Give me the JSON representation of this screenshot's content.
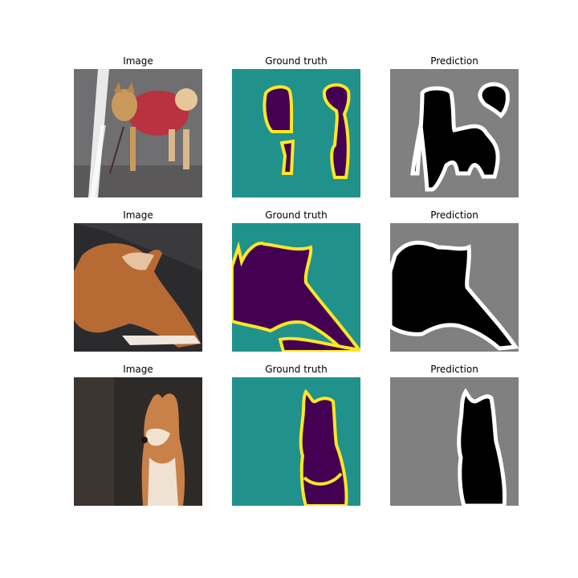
{
  "rows": [
    {
      "image_title": "Image",
      "truth_title": "Ground truth",
      "pred_title": "Prediction",
      "image_subject": "shiba dog in red jacket on wet street"
    },
    {
      "image_title": "Image",
      "truth_title": "Ground truth",
      "pred_title": "Prediction",
      "image_subject": "shiba dog lying down, head raised"
    },
    {
      "image_title": "Image",
      "truth_title": "Ground truth",
      "pred_title": "Prediction",
      "image_subject": "shiba dog portrait on dark background"
    }
  ],
  "colors": {
    "truth_background": "#21918c",
    "truth_foreground": "#440154",
    "truth_boundary": "#fde725",
    "pred_background": "#808080",
    "pred_foreground": "#000000",
    "pred_boundary": "#ffffff"
  }
}
